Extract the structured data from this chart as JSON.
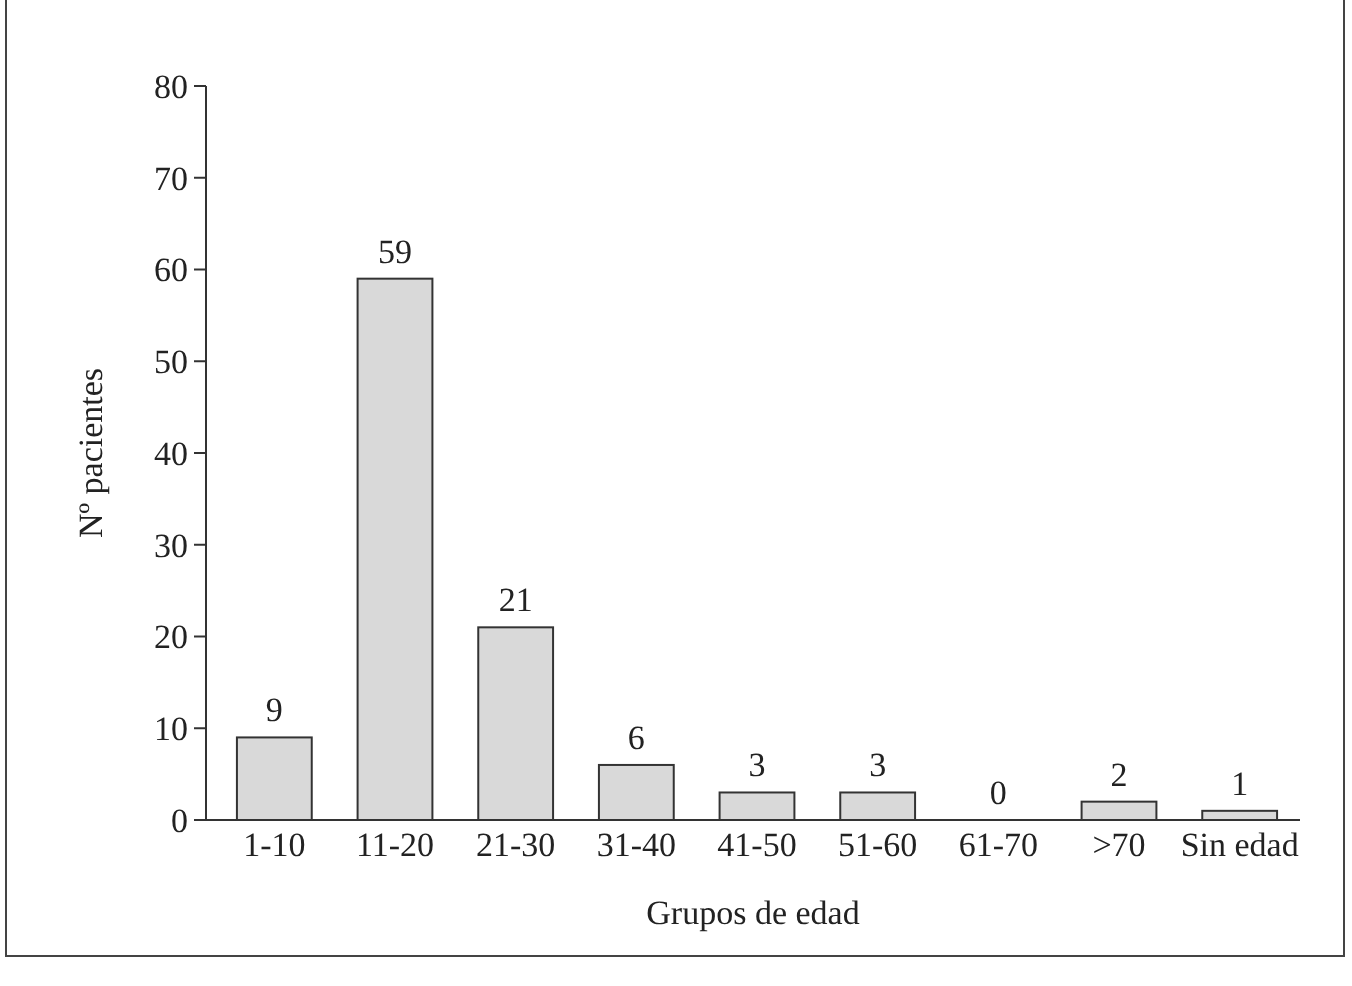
{
  "chart_data": {
    "type": "bar",
    "xlabel": "Grupos de edad",
    "ylabel": "Nº pacientes",
    "categories": [
      "1-10",
      "11-20",
      "21-30",
      "31-40",
      "41-50",
      "51-60",
      "61-70",
      ">70",
      "Sin edad"
    ],
    "values": [
      9,
      59,
      21,
      6,
      3,
      3,
      0,
      2,
      1
    ],
    "color": "#d9d9d9",
    "ylim": [
      0,
      80
    ],
    "yticks": [
      0,
      10,
      20,
      30,
      40,
      50,
      60,
      70,
      80
    ],
    "grid": false,
    "data_labels": true
  }
}
